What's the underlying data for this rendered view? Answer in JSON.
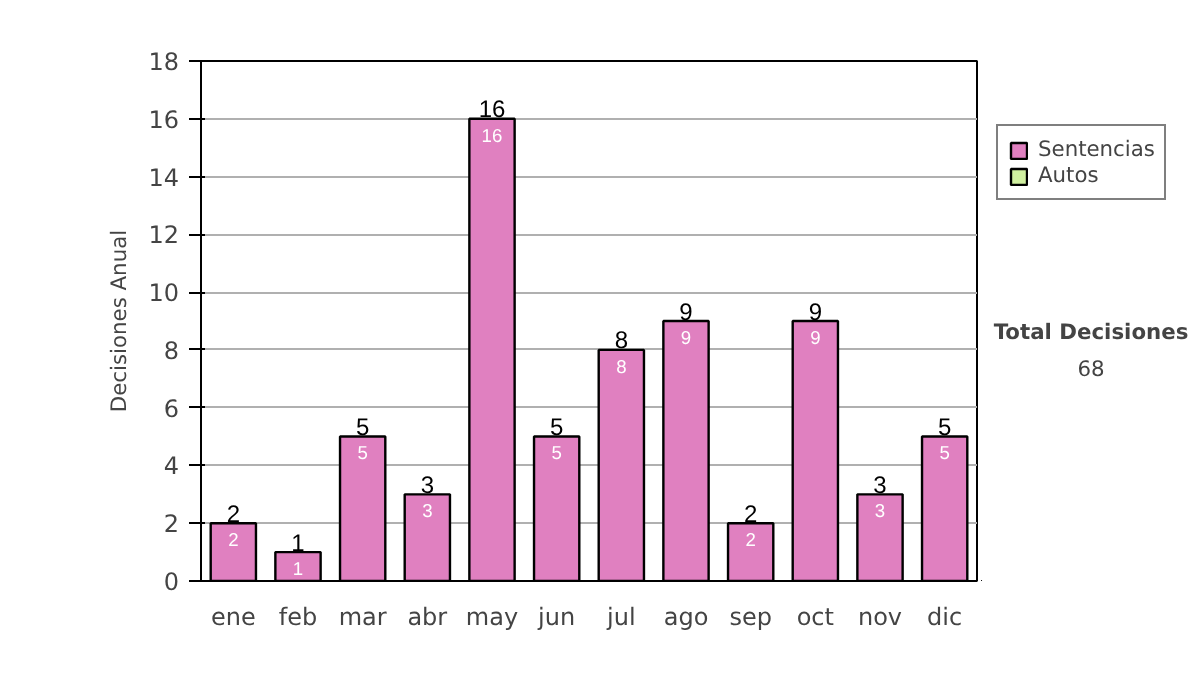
{
  "chart_data": {
    "type": "bar",
    "ylabel": "Decisiones Anual",
    "categories": [
      "ene",
      "feb",
      "mar",
      "abr",
      "may",
      "jun",
      "jul",
      "ago",
      "sep",
      "oct",
      "nov",
      "dic"
    ],
    "series": [
      {
        "name": "Sentencias",
        "color": "#e080c0",
        "values": [
          2,
          1,
          5,
          3,
          16,
          5,
          8,
          9,
          2,
          9,
          3,
          5
        ]
      },
      {
        "name": "Autos",
        "color": "#d0f0a0",
        "values": [
          null,
          null,
          null,
          null,
          null,
          null,
          null,
          null,
          null,
          null,
          null,
          null
        ]
      }
    ],
    "stacked": true,
    "data_labels": true,
    "totals": [
      "2",
      "1",
      "5",
      "3",
      "16",
      "5",
      "8",
      "9",
      "2",
      "9",
      "3",
      "5"
    ],
    "ylim": [
      0,
      18
    ],
    "yticks": [
      0,
      2,
      4,
      6,
      8,
      10,
      12,
      14,
      16,
      18
    ],
    "grid": "y",
    "legend": "right",
    "annotations": [
      "Total Decisiones",
      "68"
    ]
  }
}
